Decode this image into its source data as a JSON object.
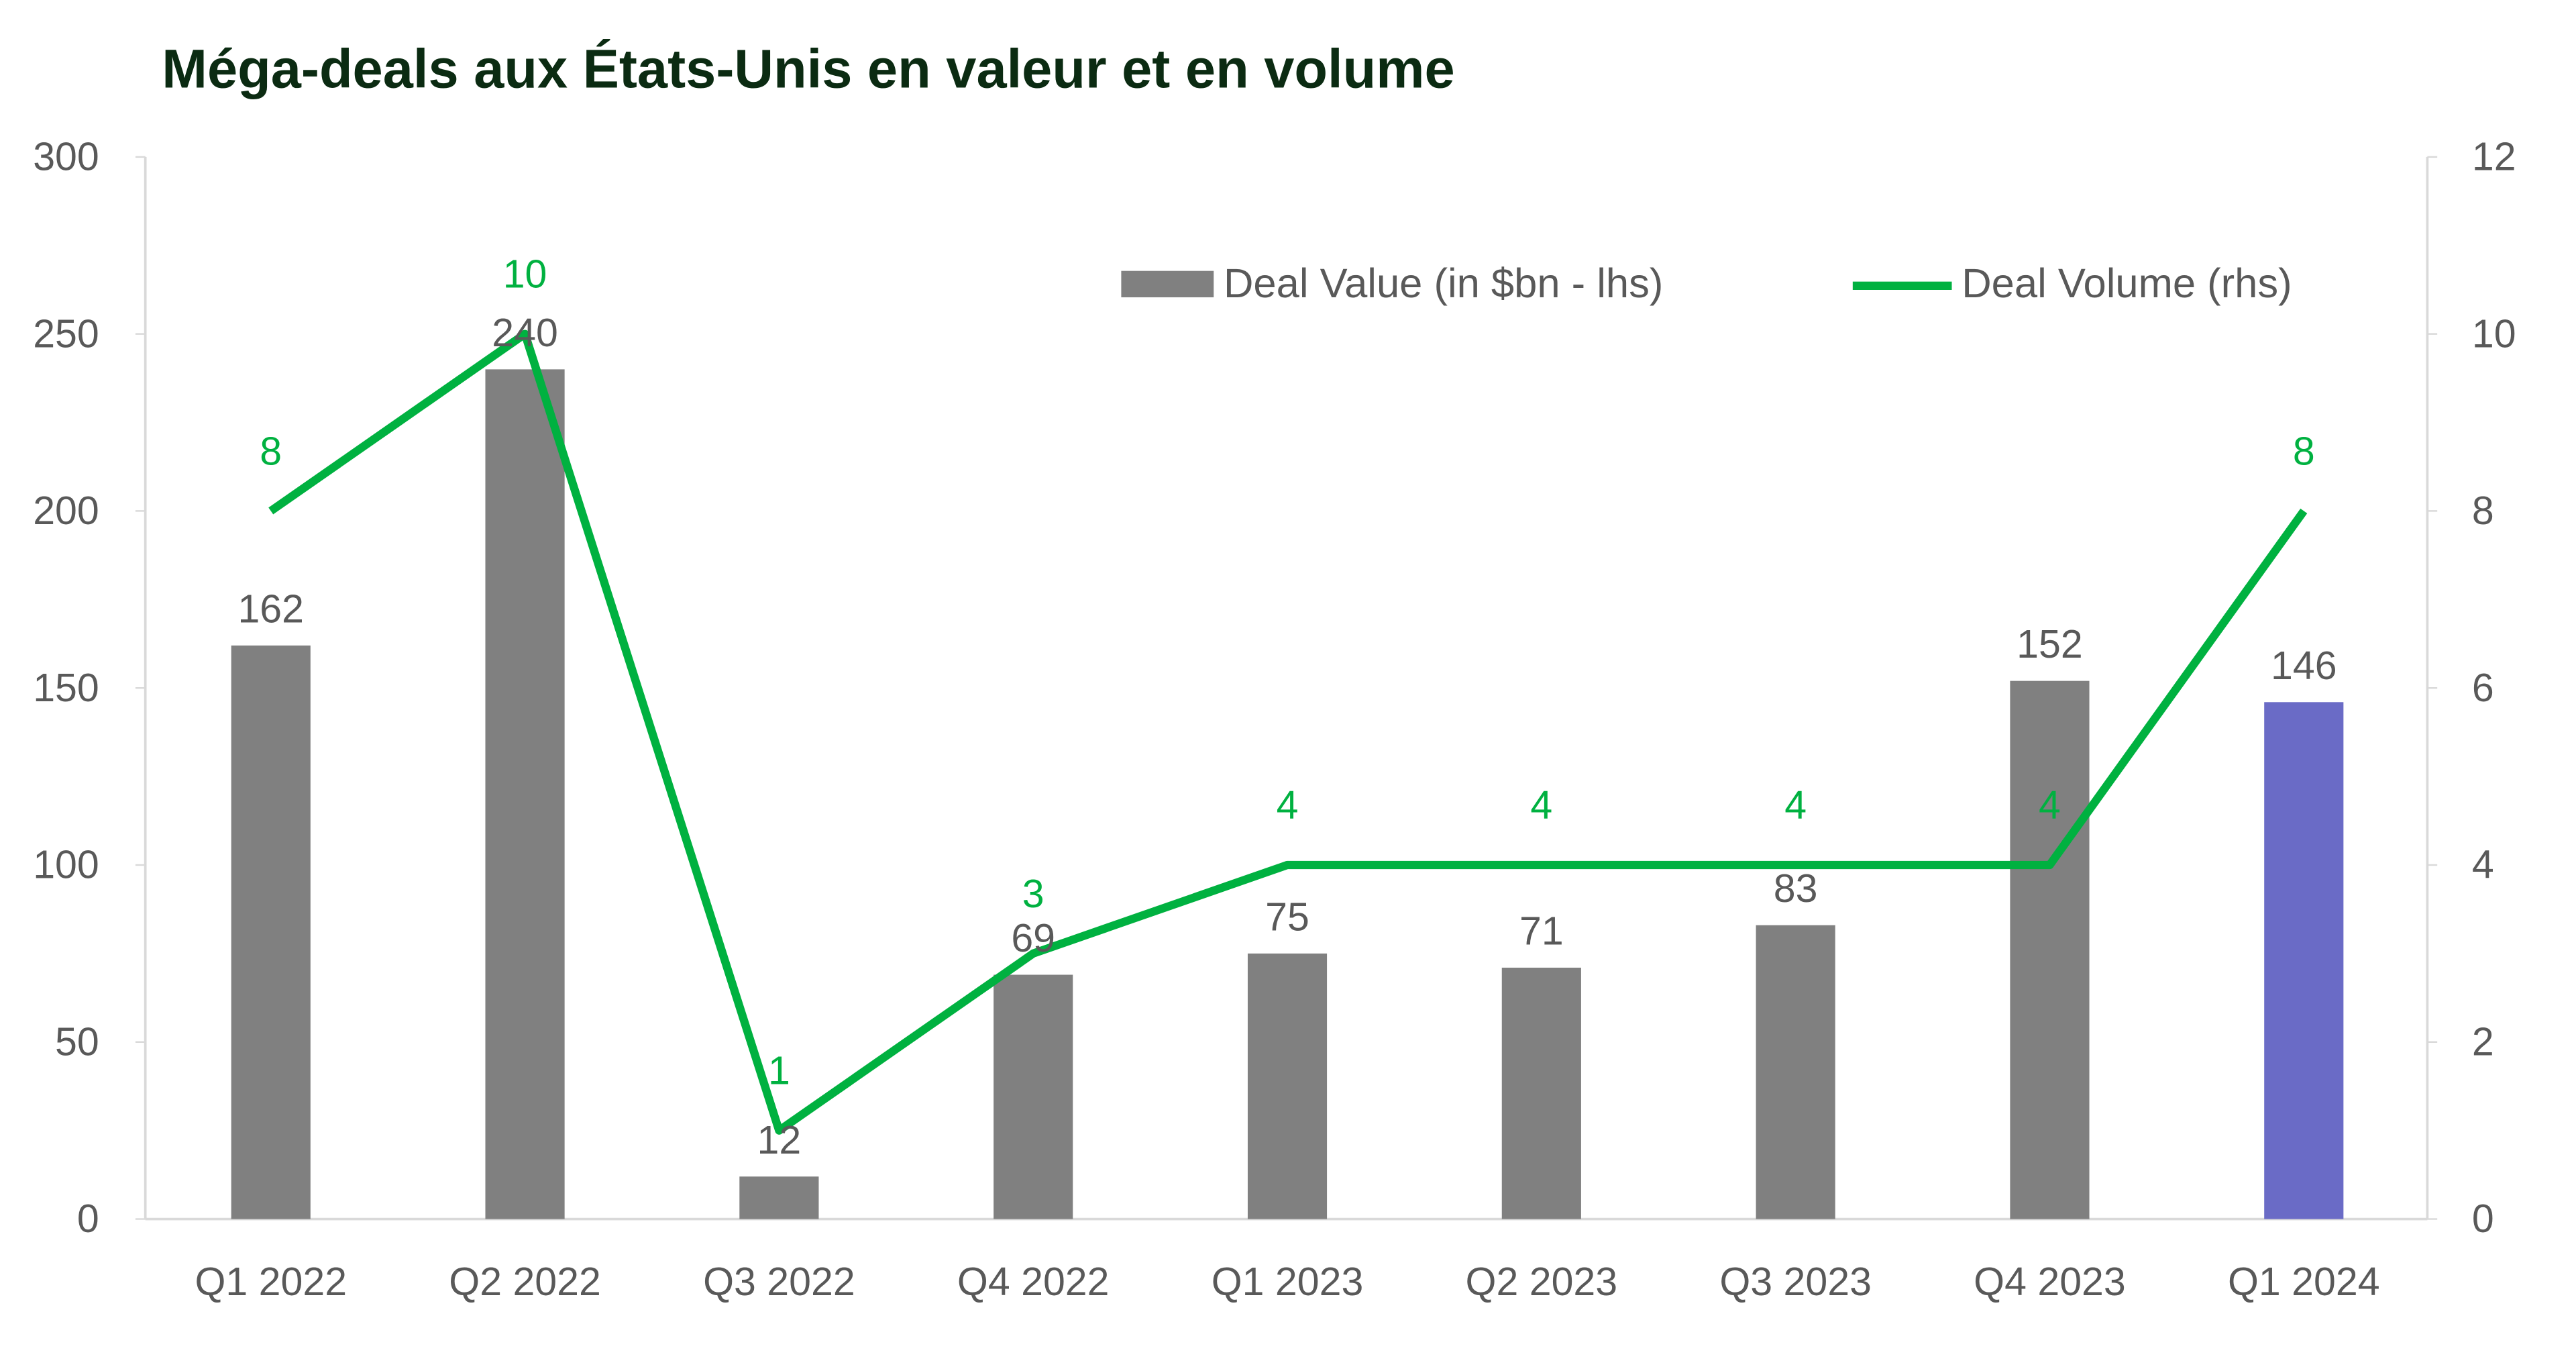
{
  "chart_data": {
    "type": "bar+line",
    "title": "Méga-deals aux États-Unis en valeur et en volume",
    "categories": [
      "Q1 2022",
      "Q2 2022",
      "Q3 2022",
      "Q4 2022",
      "Q1 2023",
      "Q2 2023",
      "Q3 2023",
      "Q4 2023",
      "Q1 2024"
    ],
    "series": [
      {
        "name": "Deal Value (in $bn - lhs)",
        "type": "bar",
        "axis": "left",
        "values": [
          162,
          240,
          12,
          69,
          75,
          71,
          83,
          152,
          146
        ],
        "color": "#808080",
        "highlight_color": "#6A6BC6",
        "highlight_index": 8
      },
      {
        "name": "Deal Volume (rhs)",
        "type": "line",
        "axis": "right",
        "values": [
          8,
          10,
          1,
          3,
          4,
          4,
          4,
          4,
          8
        ],
        "color": "#00B140"
      }
    ],
    "y_left": {
      "range": [
        0,
        300
      ],
      "ticks": [
        "0",
        "50",
        "100",
        "150",
        "200",
        "250",
        "300"
      ]
    },
    "y_right": {
      "range": [
        0,
        12
      ],
      "ticks": [
        "0",
        "2",
        "4",
        "6",
        "8",
        "10",
        "12"
      ]
    },
    "grid": false,
    "legend_placement": "top-right"
  }
}
